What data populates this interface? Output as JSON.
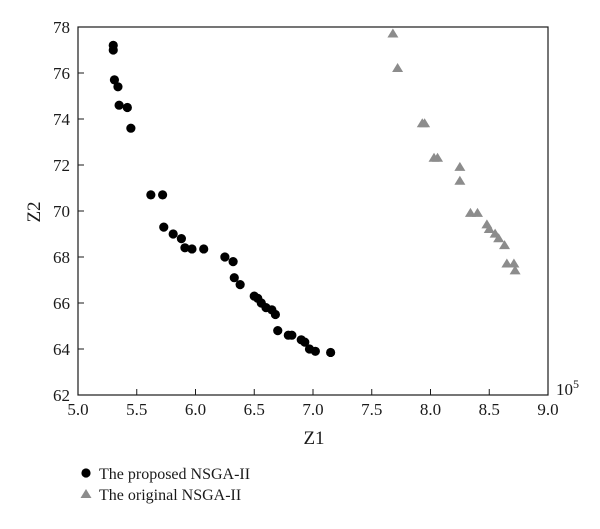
{
  "chart_data": {
    "type": "scatter",
    "xlabel": "Z1",
    "ylabel": "Z2",
    "x_multiplier_label": "10",
    "x_multiplier_exponent": "5",
    "xlim": [
      5.0,
      9.0
    ],
    "ylim": [
      62,
      78
    ],
    "x_ticks": [
      "5.0",
      "5.5",
      "6.0",
      "6.5",
      "7.0",
      "7.5",
      "8.0",
      "8.5",
      "9.0"
    ],
    "y_ticks": [
      "62",
      "64",
      "66",
      "68",
      "70",
      "72",
      "74",
      "76",
      "78"
    ],
    "grid": false,
    "legend_placement": "bottom-left",
    "series": [
      {
        "name": "The proposed NSGA-II",
        "marker": "circle",
        "color": "#000000",
        "points": [
          [
            5.3,
            77.2
          ],
          [
            5.3,
            77.0
          ],
          [
            5.31,
            75.7
          ],
          [
            5.34,
            75.4
          ],
          [
            5.35,
            74.6
          ],
          [
            5.42,
            74.5
          ],
          [
            5.45,
            73.6
          ],
          [
            5.62,
            70.7
          ],
          [
            5.72,
            70.7
          ],
          [
            5.73,
            69.3
          ],
          [
            5.81,
            69.0
          ],
          [
            5.88,
            68.8
          ],
          [
            5.91,
            68.4
          ],
          [
            5.97,
            68.35
          ],
          [
            6.07,
            68.35
          ],
          [
            6.25,
            68.0
          ],
          [
            6.32,
            67.8
          ],
          [
            6.33,
            67.1
          ],
          [
            6.38,
            66.8
          ],
          [
            6.5,
            66.3
          ],
          [
            6.53,
            66.2
          ],
          [
            6.56,
            66.0
          ],
          [
            6.6,
            65.8
          ],
          [
            6.65,
            65.7
          ],
          [
            6.68,
            65.5
          ],
          [
            6.7,
            64.8
          ],
          [
            6.79,
            64.6
          ],
          [
            6.82,
            64.6
          ],
          [
            6.9,
            64.4
          ],
          [
            6.93,
            64.3
          ],
          [
            6.97,
            64.0
          ],
          [
            7.02,
            63.9
          ],
          [
            7.15,
            63.85
          ]
        ]
      },
      {
        "name": "The original NSGA-II",
        "marker": "triangle",
        "color": "#8c8c8c",
        "points": [
          [
            7.68,
            77.7
          ],
          [
            7.72,
            76.2
          ],
          [
            7.93,
            73.8
          ],
          [
            7.95,
            73.8
          ],
          [
            8.03,
            72.3
          ],
          [
            8.06,
            72.3
          ],
          [
            8.25,
            71.9
          ],
          [
            8.25,
            71.3
          ],
          [
            8.34,
            69.9
          ],
          [
            8.4,
            69.9
          ],
          [
            8.48,
            69.4
          ],
          [
            8.5,
            69.2
          ],
          [
            8.55,
            69.0
          ],
          [
            8.58,
            68.8
          ],
          [
            8.63,
            68.5
          ],
          [
            8.65,
            67.7
          ],
          [
            8.71,
            67.7
          ],
          [
            8.72,
            67.4
          ]
        ]
      }
    ]
  }
}
